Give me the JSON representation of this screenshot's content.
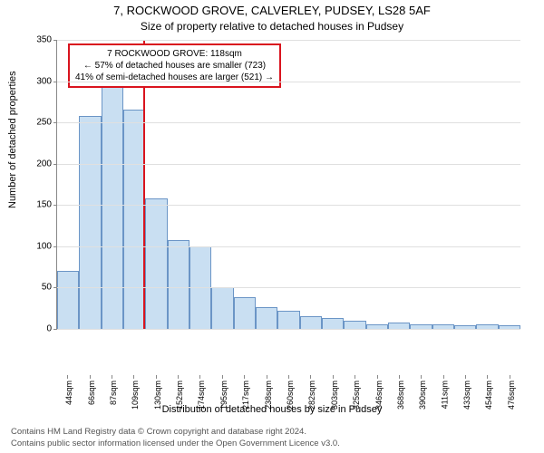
{
  "title": "7, ROCKWOOD GROVE, CALVERLEY, PUDSEY, LS28 5AF",
  "subtitle": "Size of property relative to detached houses in Pudsey",
  "y_axis_label": "Number of detached properties",
  "x_axis_label": "Distribution of detached houses by size in Pudsey",
  "chart": {
    "type": "bar",
    "ylim": [
      0,
      350
    ],
    "ytick_step": 50,
    "y_ticks": [
      0,
      50,
      100,
      150,
      200,
      250,
      300,
      350
    ],
    "categories": [
      "44sqm",
      "66sqm",
      "87sqm",
      "109sqm",
      "130sqm",
      "152sqm",
      "174sqm",
      "195sqm",
      "217sqm",
      "238sqm",
      "260sqm",
      "282sqm",
      "303sqm",
      "325sqm",
      "346sqm",
      "368sqm",
      "390sqm",
      "411sqm",
      "433sqm",
      "454sqm",
      "476sqm"
    ],
    "values": [
      70,
      258,
      300,
      265,
      158,
      108,
      100,
      50,
      38,
      26,
      22,
      15,
      13,
      10,
      5,
      8,
      6,
      5,
      4,
      5,
      4
    ],
    "bar_fill": "#c9dff2",
    "bar_border": "#6b95c6",
    "grid_color": "#e0e0e0",
    "axis_color": "#888888",
    "background": "#ffffff",
    "tick_fontsize": 10,
    "label_fontsize": 11,
    "title_fontsize": 13
  },
  "marker": {
    "color": "#d9141e",
    "position_value": 118,
    "position_category_index": 3.4
  },
  "annotation": {
    "border_color": "#d9141e",
    "lines": [
      "7 ROCKWOOD GROVE: 118sqm",
      "← 57% of detached houses are smaller (723)",
      "41% of semi-detached houses are larger (521) →"
    ]
  },
  "copyright": {
    "line1": "Contains HM Land Registry data © Crown copyright and database right 2024.",
    "line2": "Contains public sector information licensed under the Open Government Licence v3.0."
  }
}
